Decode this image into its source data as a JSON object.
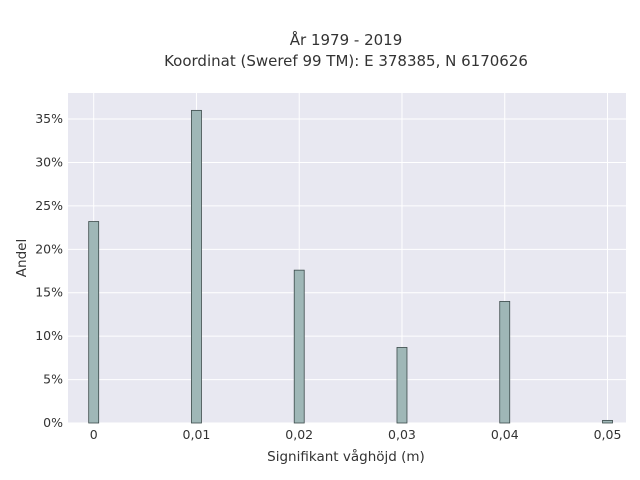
{
  "chart_data": {
    "type": "bar",
    "title_lines": [
      "År 1979 - 2019",
      "Koordinat (Sweref 99 TM): E 378385, N 6170626"
    ],
    "xlabel": "Signifikant våghöjd (m)",
    "ylabel": "Andel",
    "x": [
      0,
      0.01,
      0.02,
      0.03,
      0.04,
      0.05
    ],
    "values": [
      23.2,
      36.0,
      17.6,
      8.7,
      14.0,
      0.3
    ],
    "x_ticks": [
      0,
      0.01,
      0.02,
      0.03,
      0.04,
      0.05
    ],
    "x_tick_labels": [
      "0",
      "0,01",
      "0,02",
      "0,03",
      "0,04",
      "0,05"
    ],
    "y_ticks": [
      0,
      5,
      10,
      15,
      20,
      25,
      30,
      35
    ],
    "y_tick_labels": [
      "0%",
      "5%",
      "10%",
      "15%",
      "20%",
      "25%",
      "30%",
      "35%"
    ],
    "xlim": [
      -0.0025,
      0.0518
    ],
    "ylim": [
      0,
      38
    ],
    "grid": true,
    "colors": {
      "bar_fill": "#9fb7b7",
      "bar_stroke": "#3b4a4a",
      "plot_background": "#e8e8f1",
      "grid": "#ffffff"
    }
  }
}
